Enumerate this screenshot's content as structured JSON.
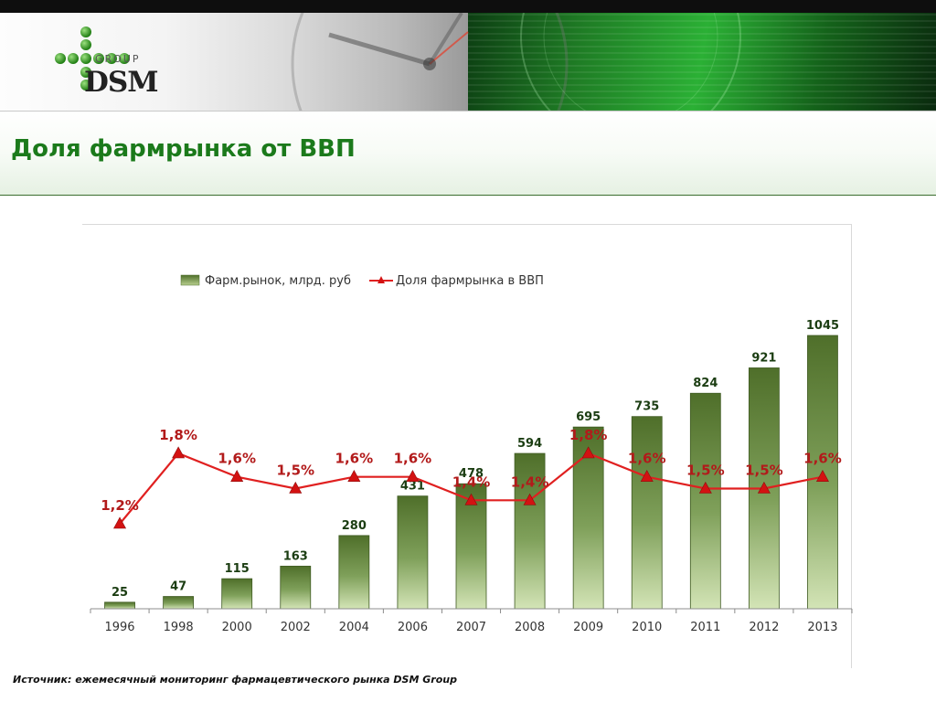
{
  "header": {
    "logo_group": "GROUP",
    "logo_dsm": "DSM"
  },
  "page_title": "Доля фармрынка от ВВП",
  "source_note": "Источник: ежемесячный мониторинг фармацевтического рынка DSM Group",
  "colors": {
    "title": "#1b7a1b",
    "bar_dark": "#4f6f2a",
    "bar_light": "#c8dba6",
    "line": "#e02020",
    "marker": "#d31212",
    "bar_label": "#1b3d12",
    "line_label": "#b21a1a"
  },
  "chart_data": {
    "type": "bar",
    "categories": [
      "1996",
      "1998",
      "2000",
      "2002",
      "2004",
      "2006",
      "2007",
      "2008",
      "2009",
      "2010",
      "2011",
      "2012",
      "2013"
    ],
    "series": [
      {
        "name": "Фарм.рынок, млрд. руб",
        "type": "bar",
        "values": [
          25,
          47,
          115,
          163,
          280,
          431,
          478,
          594,
          695,
          735,
          824,
          921,
          1045
        ],
        "labels": [
          "25",
          "47",
          "115",
          "163",
          "280",
          "431",
          "478",
          "594",
          "695",
          "735",
          "824",
          "921",
          "1045"
        ]
      },
      {
        "name": "Доля фармрынка в ВВП",
        "type": "line",
        "values": [
          1.2,
          1.8,
          1.6,
          1.5,
          1.6,
          1.6,
          1.4,
          1.4,
          1.8,
          1.6,
          1.5,
          1.5,
          1.6
        ],
        "labels": [
          "1,2%",
          "1,8%",
          "1,6%",
          "1,5%",
          "1,6%",
          "1,6%",
          "1,4%",
          "1,4%",
          "1,8%",
          "1,6%",
          "1,5%",
          "1,5%",
          "1,6%"
        ]
      }
    ],
    "legend_position": "top",
    "grid": false
  }
}
